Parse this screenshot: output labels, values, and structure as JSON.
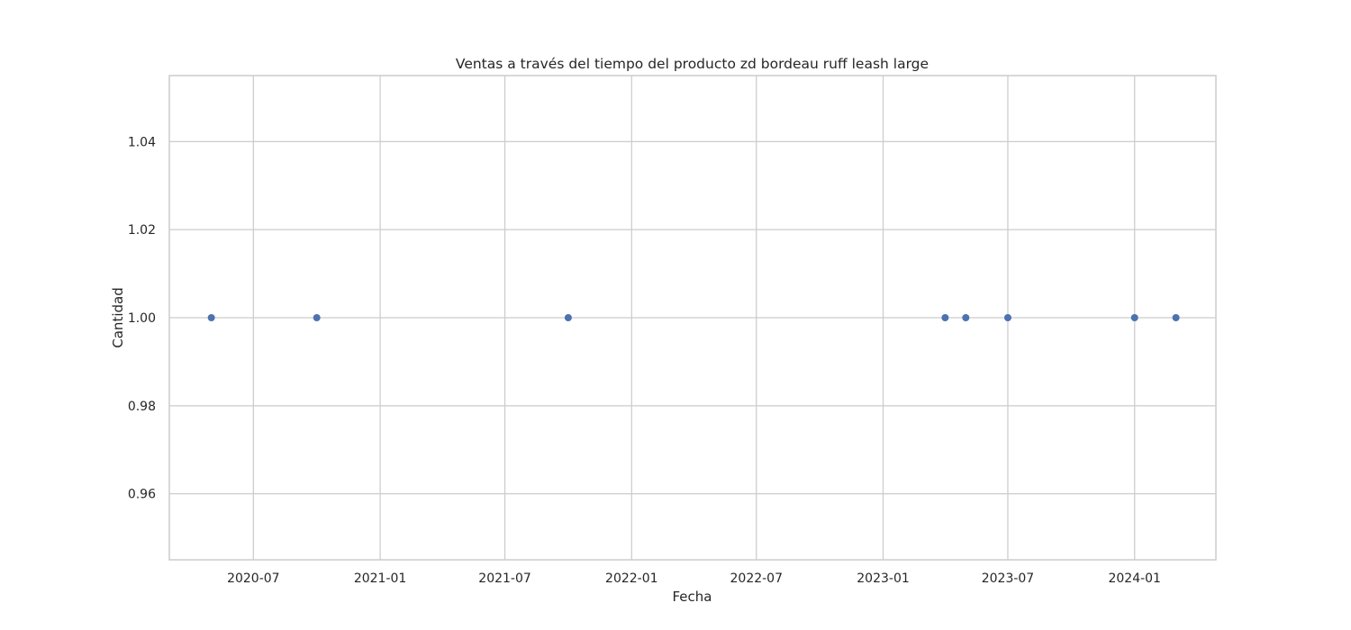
{
  "chart_data": {
    "type": "scatter",
    "title": "Ventas a través del tiempo del producto zd bordeau ruff leash large",
    "xlabel": "Fecha",
    "ylabel": "Cantidad",
    "x_axis_type": "date",
    "xlim": [
      "2020-03-01",
      "2024-04-28"
    ],
    "ylim": [
      0.945,
      1.055
    ],
    "x_ticks": [
      "2020-07-01",
      "2021-01-01",
      "2021-07-01",
      "2022-01-01",
      "2022-07-01",
      "2023-01-01",
      "2023-07-01",
      "2024-01-01"
    ],
    "x_tick_labels": [
      "2020-07",
      "2021-01",
      "2021-07",
      "2022-01",
      "2022-07",
      "2023-01",
      "2023-07",
      "2024-01"
    ],
    "y_ticks": [
      0.96,
      0.98,
      1.0,
      1.02,
      1.04
    ],
    "y_tick_labels": [
      "0.96",
      "0.98",
      "1.00",
      "1.02",
      "1.04"
    ],
    "grid": true,
    "series": [
      {
        "color": "#4c72b0",
        "points": [
          {
            "x": "2020-05-01",
            "y": 1.0
          },
          {
            "x": "2020-10-01",
            "y": 1.0
          },
          {
            "x": "2021-10-01",
            "y": 1.0
          },
          {
            "x": "2023-04-01",
            "y": 1.0
          },
          {
            "x": "2023-05-01",
            "y": 1.0
          },
          {
            "x": "2023-07-01",
            "y": 1.0
          },
          {
            "x": "2024-01-01",
            "y": 1.0
          },
          {
            "x": "2024-03-01",
            "y": 1.0
          }
        ]
      }
    ]
  }
}
